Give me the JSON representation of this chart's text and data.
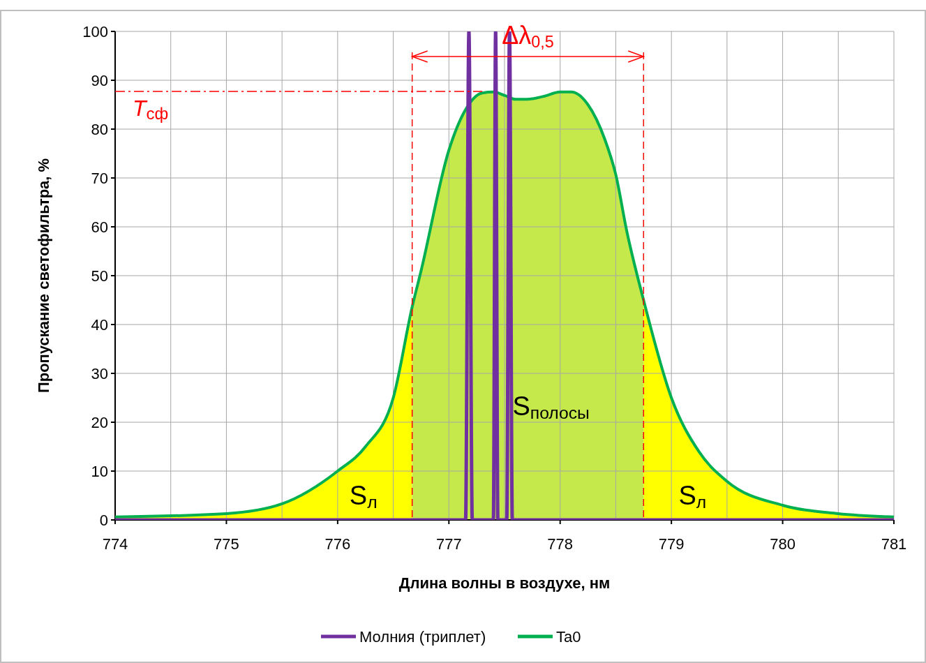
{
  "chart_data": {
    "type": "line",
    "xlabel": "Длина волны в воздухе, нм",
    "ylabel": "Пропускание светофильтра, %",
    "xlim": [
      774,
      781
    ],
    "ylim": [
      0,
      100
    ],
    "xticks": [
      774,
      {
        "value": 774.5,
        "label": null
      },
      775,
      {
        "value": 775.5,
        "label": null
      },
      776,
      {
        "value": 776.5,
        "label": null
      },
      777,
      {
        "value": 777.5,
        "label": null
      },
      778,
      {
        "value": 778.5,
        "label": null
      },
      779,
      {
        "value": 779.5,
        "label": null
      },
      780,
      {
        "value": 780.5,
        "label": null
      },
      781
    ],
    "yticks": [
      0,
      10,
      20,
      30,
      40,
      50,
      60,
      70,
      80,
      90,
      100
    ],
    "grid": true,
    "legend": "bottom",
    "line_style": "solid",
    "series": [
      {
        "name": "Молния (триплет)",
        "color": "#7030a0",
        "x": [
          774,
          777.15,
          777.18,
          777.21,
          777.4,
          777.42,
          777.44,
          777.52,
          777.545,
          777.57,
          781
        ],
        "values": [
          0,
          0,
          100,
          0,
          0,
          100,
          0,
          0,
          100,
          0,
          0
        ]
      },
      {
        "name": "Ta0",
        "color": "#00b050",
        "x": [
          774,
          775,
          775.5,
          776,
          776.25,
          776.5,
          776.67,
          776.75,
          777,
          777.15,
          777.3,
          777.4,
          777.5,
          777.6,
          777.7,
          777.85,
          778,
          778.1,
          778.25,
          778.4,
          778.5,
          778.6,
          778.75,
          779,
          779.25,
          779.5,
          780,
          780.5,
          781
        ],
        "values": [
          0.6,
          1.3,
          3.3,
          10,
          15,
          25,
          43.6,
          51,
          75.7,
          84,
          87.4,
          87.6,
          86.9,
          86.1,
          86.1,
          86.7,
          87.6,
          87.6,
          85,
          78,
          70.7,
          59,
          45,
          25,
          13.9,
          7.9,
          3,
          1.3,
          0.6
        ]
      }
    ],
    "bands": [
      {
        "axis": "x",
        "from": 774,
        "to": 776.67,
        "color": "#ffff00"
      },
      {
        "axis": "x",
        "from": 776.67,
        "to": 778.75,
        "color": "#c5e84a"
      },
      {
        "axis": "x",
        "from": 778.75,
        "to": 781,
        "color": "#ffff00"
      }
    ],
    "ref_lines": [
      {
        "axis": "y",
        "value": 87.7,
        "label": "T$_{сф}$",
        "color": "#ff0000",
        "line_style": "dashdot"
      },
      {
        "axis": "x",
        "value": 776.67,
        "color": "#ff0000",
        "line_style": "dashed"
      },
      {
        "axis": "x",
        "value": 778.75,
        "color": "#ff0000",
        "line_style": "dashed"
      }
    ],
    "annotations": [
      "Δλ$_{0,5}$",
      "S$_{полосы}$",
      "S$_{л}$",
      "S$_{л}$"
    ]
  }
}
